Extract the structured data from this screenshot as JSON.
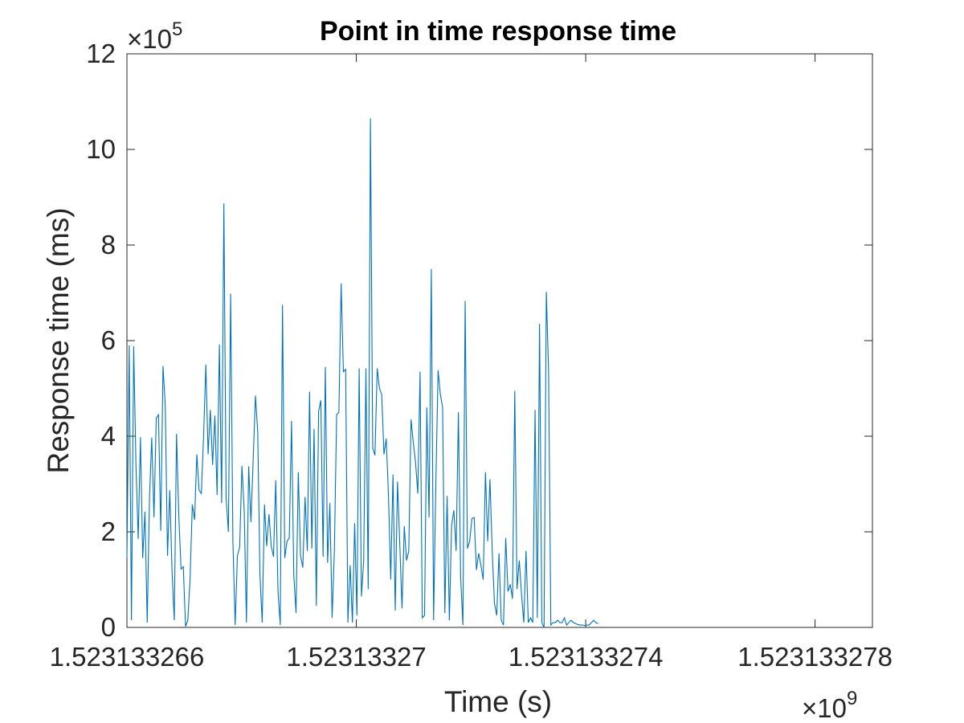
{
  "chart_data": {
    "type": "line",
    "title": "Point in time response time",
    "xlabel": "Time (s)",
    "ylabel": "Response time (ms)",
    "x_multiplier": {
      "base": "×10",
      "power": "9"
    },
    "y_multiplier": {
      "base": "×10",
      "power": "5"
    },
    "xlim": [
      1.523133266,
      1.523133279
    ],
    "ylim": [
      0,
      12
    ],
    "x_ticks": [
      1.523133266,
      1.52313327,
      1.523133274,
      1.523133278
    ],
    "x_tick_labels": [
      "1.523133266",
      "1.52313327",
      "1.523133274",
      "1.523133278"
    ],
    "y_ticks": [
      0,
      2,
      4,
      6,
      8,
      10,
      12
    ],
    "y_tick_labels": [
      "0",
      "2",
      "4",
      "6",
      "8",
      "10",
      "12"
    ],
    "grid": false,
    "line_color": "#0072bd",
    "series": [
      {
        "x_start": 1.523133266,
        "x_step": 3.932e-11,
        "values": [
          1.45,
          5.9,
          0.15,
          5.88,
          3.4,
          1.85,
          3.98,
          1.45,
          2.42,
          0.1,
          2.7,
          3.97,
          2.3,
          4.38,
          4.45,
          2.02,
          5.47,
          4.65,
          1.5,
          2.87,
          1.18,
          0.15,
          4.05,
          2.35,
          1.22,
          1.27,
          0.02,
          0.15,
          1.0,
          2.57,
          2.25,
          3.62,
          2.87,
          2.8,
          4.0,
          5.5,
          3.62,
          4.55,
          3.4,
          4.43,
          2.77,
          5.92,
          2.6,
          8.87,
          2.7,
          2.0,
          6.98,
          1.8,
          0.05,
          1.5,
          1.68,
          3.38,
          2.47,
          0.1,
          3.37,
          2.2,
          3.52,
          4.85,
          4.1,
          1.1,
          0.1,
          2.57,
          1.7,
          2.37,
          1.7,
          1.48,
          3.08,
          0.75,
          0.05,
          6.75,
          1.45,
          1.8,
          1.87,
          4.32,
          1.1,
          0.3,
          3.25,
          1.5,
          1.25,
          2.73,
          1.6,
          4.93,
          1.65,
          4.15,
          0.45,
          4.52,
          4.75,
          1.48,
          5.45,
          1.35,
          2.6,
          0.2,
          1.6,
          4.45,
          4.5,
          7.2,
          5.35,
          5.4,
          0.1,
          1.3,
          0.1,
          2.18,
          0.25,
          5.42,
          0.65,
          1.4,
          5.42,
          0.8,
          10.65,
          3.75,
          3.6,
          5.42,
          5.0,
          4.87,
          3.62,
          3.95,
          2.75,
          1.0,
          3.2,
          0.35,
          3.05,
          1.75,
          0.4,
          2.12,
          1.4,
          1.6,
          4.35,
          3.87,
          3.45,
          2.8,
          5.35,
          0.2,
          0.25,
          4.6,
          2.3,
          7.5,
          0.15,
          3.0,
          5.38,
          4.88,
          4.6,
          0.3,
          2.75,
          0.15,
          2.15,
          2.45,
          1.6,
          4.5,
          1.05,
          0.05,
          6.83,
          1.65,
          1.8,
          2.28,
          2.3,
          1.2,
          1.55,
          1.3,
          1.0,
          3.25,
          1.8,
          3.1,
          1.6,
          0.5,
          0.25,
          1.55,
          0.15,
          0.05,
          1.87,
          0.75,
          0.9,
          0.6,
          4.95,
          0.8,
          1.4,
          0.7,
          0.1,
          1.6,
          0.1,
          0.2,
          0.1,
          4.55,
          0.2,
          6.35,
          0.1,
          0.0,
          7.02,
          5.35,
          0.05,
          0.1,
          0.1,
          0.15,
          0.1,
          0.1,
          0.2,
          0.05,
          0.1,
          0.15,
          0.1,
          0.08,
          0.06,
          0.05,
          0.05,
          0.04,
          0.05,
          0.05,
          0.1,
          0.15,
          0.1,
          0.08
        ]
      }
    ]
  }
}
